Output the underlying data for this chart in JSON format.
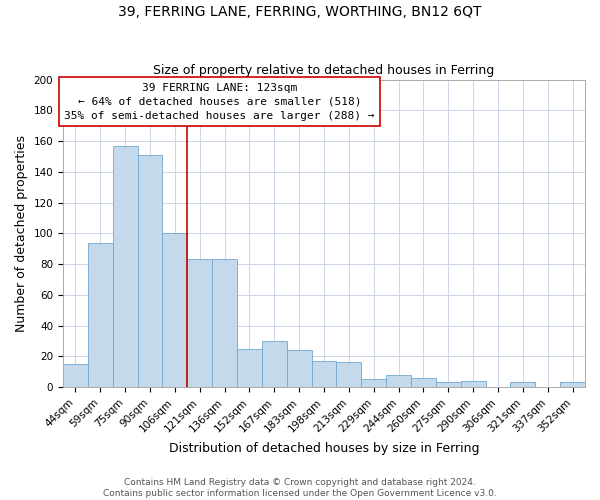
{
  "title": "39, FERRING LANE, FERRING, WORTHING, BN12 6QT",
  "subtitle": "Size of property relative to detached houses in Ferring",
  "xlabel": "Distribution of detached houses by size in Ferring",
  "ylabel": "Number of detached properties",
  "categories": [
    "44sqm",
    "59sqm",
    "75sqm",
    "90sqm",
    "106sqm",
    "121sqm",
    "136sqm",
    "152sqm",
    "167sqm",
    "183sqm",
    "198sqm",
    "213sqm",
    "229sqm",
    "244sqm",
    "260sqm",
    "275sqm",
    "290sqm",
    "306sqm",
    "321sqm",
    "337sqm",
    "352sqm"
  ],
  "values": [
    15,
    94,
    157,
    151,
    100,
    83,
    83,
    25,
    30,
    24,
    17,
    16,
    5,
    8,
    6,
    3,
    4,
    0,
    3,
    0,
    3
  ],
  "bar_color": "#c5d9ec",
  "bar_edge_color": "#6fa8d0",
  "property_line_x": 4.5,
  "property_line_color": "#cc0000",
  "annotation_title": "39 FERRING LANE: 123sqm",
  "annotation_line1": "← 64% of detached houses are smaller (518)",
  "annotation_line2": "35% of semi-detached houses are larger (288) →",
  "annotation_box_color": "#ffffff",
  "annotation_box_edge_color": "#cc0000",
  "ylim": [
    0,
    200
  ],
  "yticks": [
    0,
    20,
    40,
    60,
    80,
    100,
    120,
    140,
    160,
    180,
    200
  ],
  "footer_line1": "Contains HM Land Registry data © Crown copyright and database right 2024.",
  "footer_line2": "Contains public sector information licensed under the Open Government Licence v3.0.",
  "background_color": "#ffffff",
  "grid_color": "#ccd6e8",
  "title_fontsize": 10,
  "subtitle_fontsize": 9,
  "axis_label_fontsize": 9,
  "tick_fontsize": 7.5,
  "footer_fontsize": 6.5
}
